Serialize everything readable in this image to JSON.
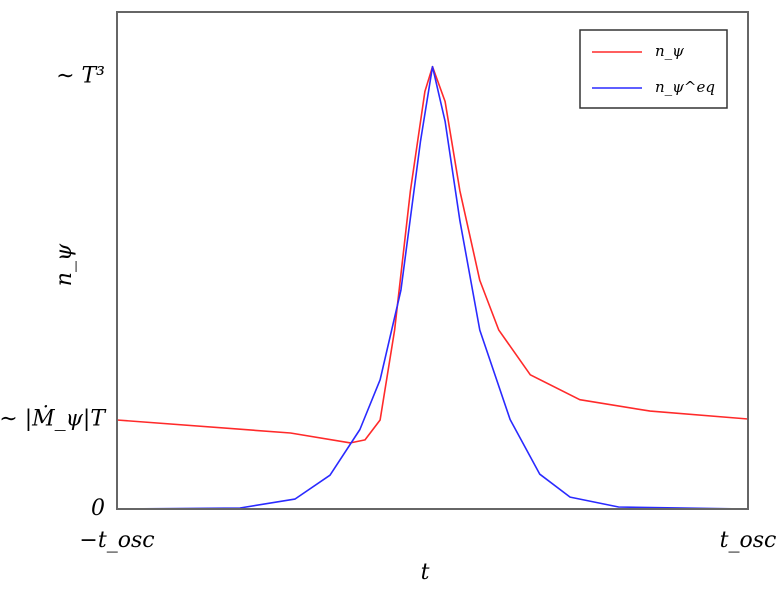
{
  "chart_data": {
    "type": "line",
    "xlabel": "t",
    "ylabel": "n_ψ",
    "xlim": [
      -1,
      1
    ],
    "ylim": [
      0,
      100
    ],
    "xticks": [
      {
        "value": -1,
        "label": "−t_osc"
      },
      {
        "value": 1,
        "label": "t_osc"
      }
    ],
    "yticks": [
      {
        "value": 0,
        "label": "0"
      },
      {
        "value": 18,
        "label": "∼ |Ṁ_ψ|T"
      },
      {
        "value": 87,
        "label": "∼ T³"
      }
    ],
    "legend": "upper right",
    "series": [
      {
        "name": "n_ψ",
        "color": "#ff2a2a",
        "x": [
          -1,
          -0.45,
          -0.26,
          -0.214,
          -0.166,
          -0.12,
          -0.07,
          -0.024,
          0,
          0.04,
          0.087,
          0.15,
          0.21,
          0.31,
          0.467,
          0.69,
          1
        ],
        "values": [
          17.9,
          15.3,
          13.3,
          13.9,
          17.9,
          36,
          64,
          84,
          89,
          82,
          64,
          46,
          36,
          27,
          22,
          19.7,
          18.1
        ]
      },
      {
        "name": "n_ψ^eq",
        "color": "#2a2aff",
        "x": [
          -1,
          -0.61,
          -0.436,
          -0.325,
          -0.23,
          -0.166,
          -0.1,
          -0.038,
          0,
          0.04,
          0.087,
          0.15,
          0.246,
          0.34,
          0.436,
          0.59,
          1
        ],
        "values": [
          0,
          0.2,
          2,
          6.8,
          16,
          26,
          44,
          74,
          89,
          78,
          58,
          36,
          18,
          7,
          2.4,
          0.4,
          0
        ]
      }
    ]
  }
}
